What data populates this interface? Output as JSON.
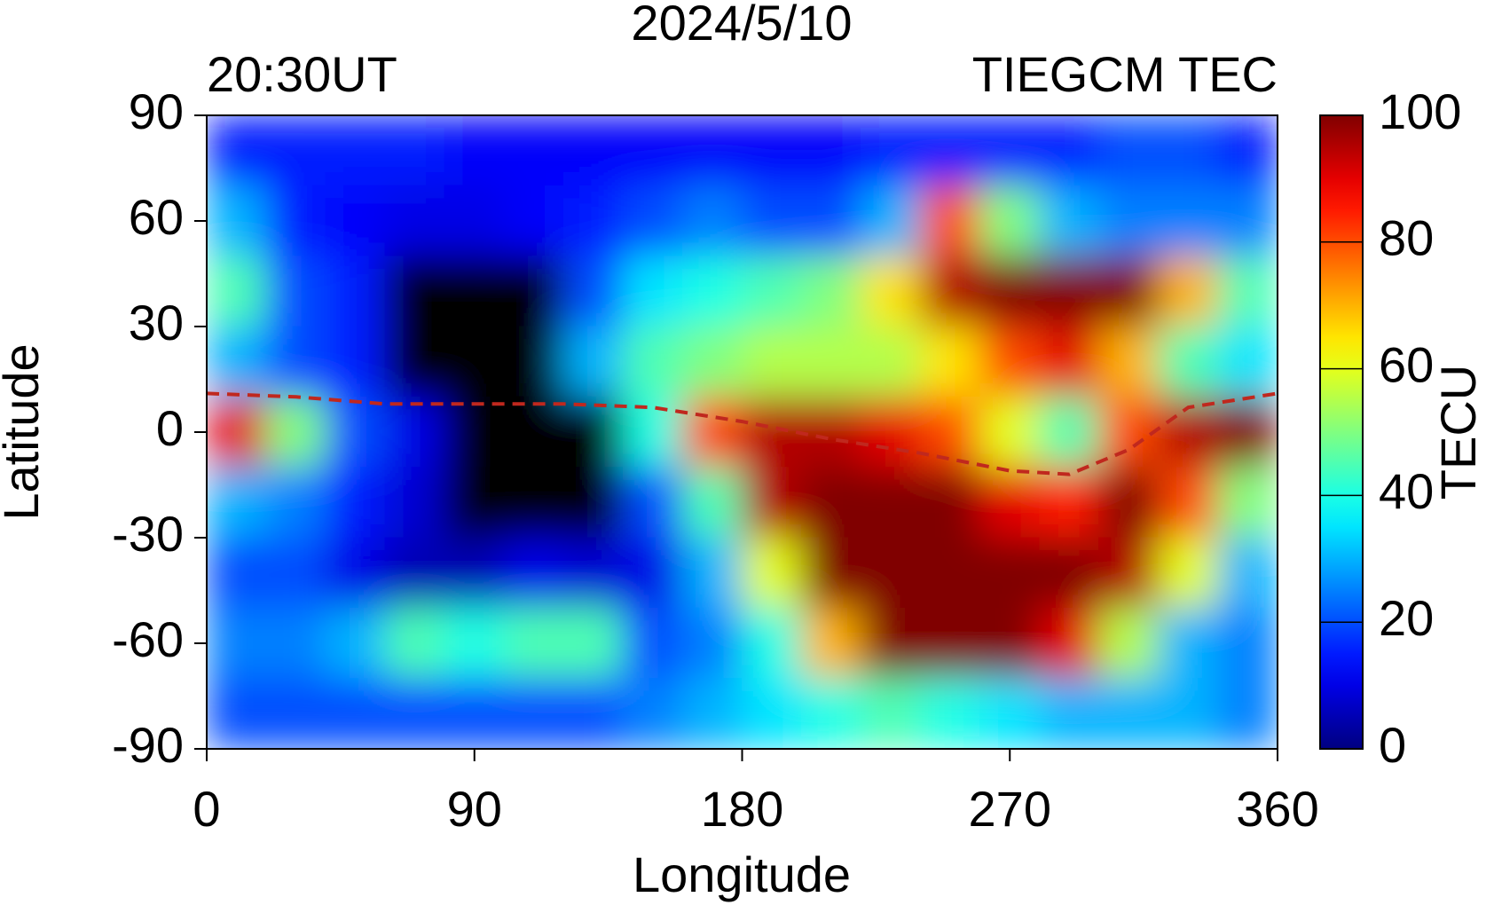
{
  "chart_data": {
    "type": "heatmap",
    "title": "2024/5/10",
    "subtitle_left": "20:30UT",
    "subtitle_right": "TIEGCM TEC",
    "x_label": "Longitude",
    "y_label": "Latitude",
    "colorbar_label": "TECU",
    "colormap": "jet",
    "mask_color": "#000000",
    "xlim": [
      0,
      360
    ],
    "xticks": [
      0,
      90,
      180,
      270,
      360
    ],
    "ylim": [
      -90,
      90
    ],
    "yticks": [
      -90,
      -60,
      -30,
      0,
      30,
      60,
      90
    ],
    "clim": [
      0,
      100
    ],
    "cticks": [
      0,
      20,
      40,
      60,
      80,
      100
    ],
    "x": [
      10,
      30,
      50,
      70,
      90,
      110,
      130,
      150,
      170,
      190,
      210,
      230,
      250,
      270,
      290,
      310,
      330,
      350
    ],
    "y": [
      80,
      60,
      40,
      20,
      0,
      -20,
      -40,
      -60,
      -80
    ],
    "z": [
      [
        15,
        15,
        15,
        15,
        12,
        12,
        12,
        12,
        12,
        12,
        12,
        15,
        15,
        15,
        15,
        20,
        20,
        15
      ],
      [
        30,
        15,
        12,
        10,
        10,
        12,
        15,
        20,
        25,
        20,
        20,
        30,
        80,
        50,
        30,
        25,
        25,
        25
      ],
      [
        45,
        20,
        15,
        null,
        null,
        null,
        20,
        35,
        40,
        45,
        50,
        65,
        95,
        100,
        100,
        100,
        70,
        45
      ],
      [
        30,
        20,
        15,
        null,
        null,
        null,
        30,
        45,
        50,
        55,
        55,
        55,
        65,
        80,
        90,
        70,
        45,
        35
      ],
      [
        90,
        50,
        20,
        10,
        null,
        null,
        null,
        40,
        80,
        95,
        95,
        90,
        80,
        60,
        45,
        80,
        95,
        100
      ],
      [
        30,
        25,
        15,
        8,
        null,
        null,
        null,
        20,
        45,
        95,
        100,
        100,
        100,
        90,
        85,
        100,
        80,
        50
      ],
      [
        20,
        20,
        10,
        5,
        5,
        10,
        8,
        10,
        30,
        60,
        100,
        100,
        100,
        100,
        100,
        95,
        60,
        30
      ],
      [
        25,
        25,
        30,
        45,
        40,
        45,
        45,
        20,
        25,
        40,
        70,
        100,
        100,
        100,
        90,
        55,
        30,
        25
      ],
      [
        20,
        20,
        20,
        20,
        20,
        20,
        20,
        25,
        30,
        35,
        40,
        45,
        40,
        35,
        30,
        30,
        30,
        25
      ]
    ],
    "equator": {
      "color": "#c0281e",
      "x": [
        0,
        30,
        60,
        90,
        120,
        150,
        180,
        210,
        240,
        270,
        290,
        310,
        330,
        360
      ],
      "y": [
        11,
        10,
        8,
        8,
        8,
        7,
        3,
        -2,
        -6,
        -11,
        -12,
        -5,
        7,
        11
      ]
    }
  }
}
